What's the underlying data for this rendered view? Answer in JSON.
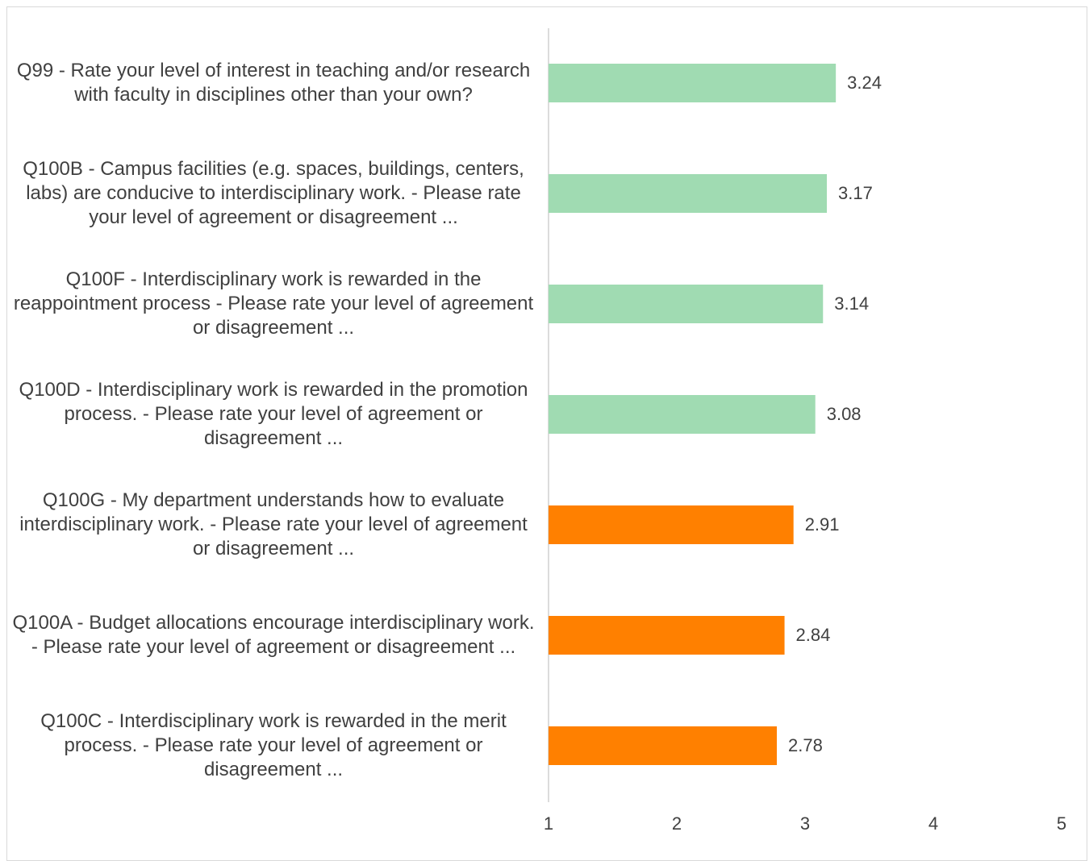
{
  "chart_data": {
    "type": "hbar",
    "categories": [
      "Q99 - Rate your level of interest in teaching and/or research with faculty in disciplines other than your own?",
      "Q100B - Campus facilities (e.g. spaces, buildings, centers, labs) are conducive to interdisciplinary work. - Please rate your level of agreement or disagreement ...",
      "Q100F - Interdisciplinary work is rewarded in the reappointment process - Please rate your level of agreement or disagreement ...",
      "Q100D - Interdisciplinary work is rewarded in the promotion process. - Please rate your level of agreement or disagreement ...",
      "Q100G - My department understands how to evaluate interdisciplinary work. - Please rate your level of agreement or disagreement ...",
      "Q100A - Budget allocations encourage interdisciplinary work. - Please rate your level of agreement or disagreement ...",
      "Q100C - Interdisciplinary work is rewarded in the merit process. - Please rate your level of agreement or disagreement ..."
    ],
    "values": [
      3.24,
      3.17,
      3.14,
      3.08,
      2.91,
      2.84,
      2.78
    ],
    "colors": [
      "#a0dbb2",
      "#a0dbb2",
      "#a0dbb2",
      "#a0dbb2",
      "#ff8000",
      "#ff8000",
      "#ff8000"
    ],
    "xlim": [
      1,
      5
    ],
    "xticks": [
      1,
      2,
      3,
      4,
      5
    ],
    "grid": false
  }
}
